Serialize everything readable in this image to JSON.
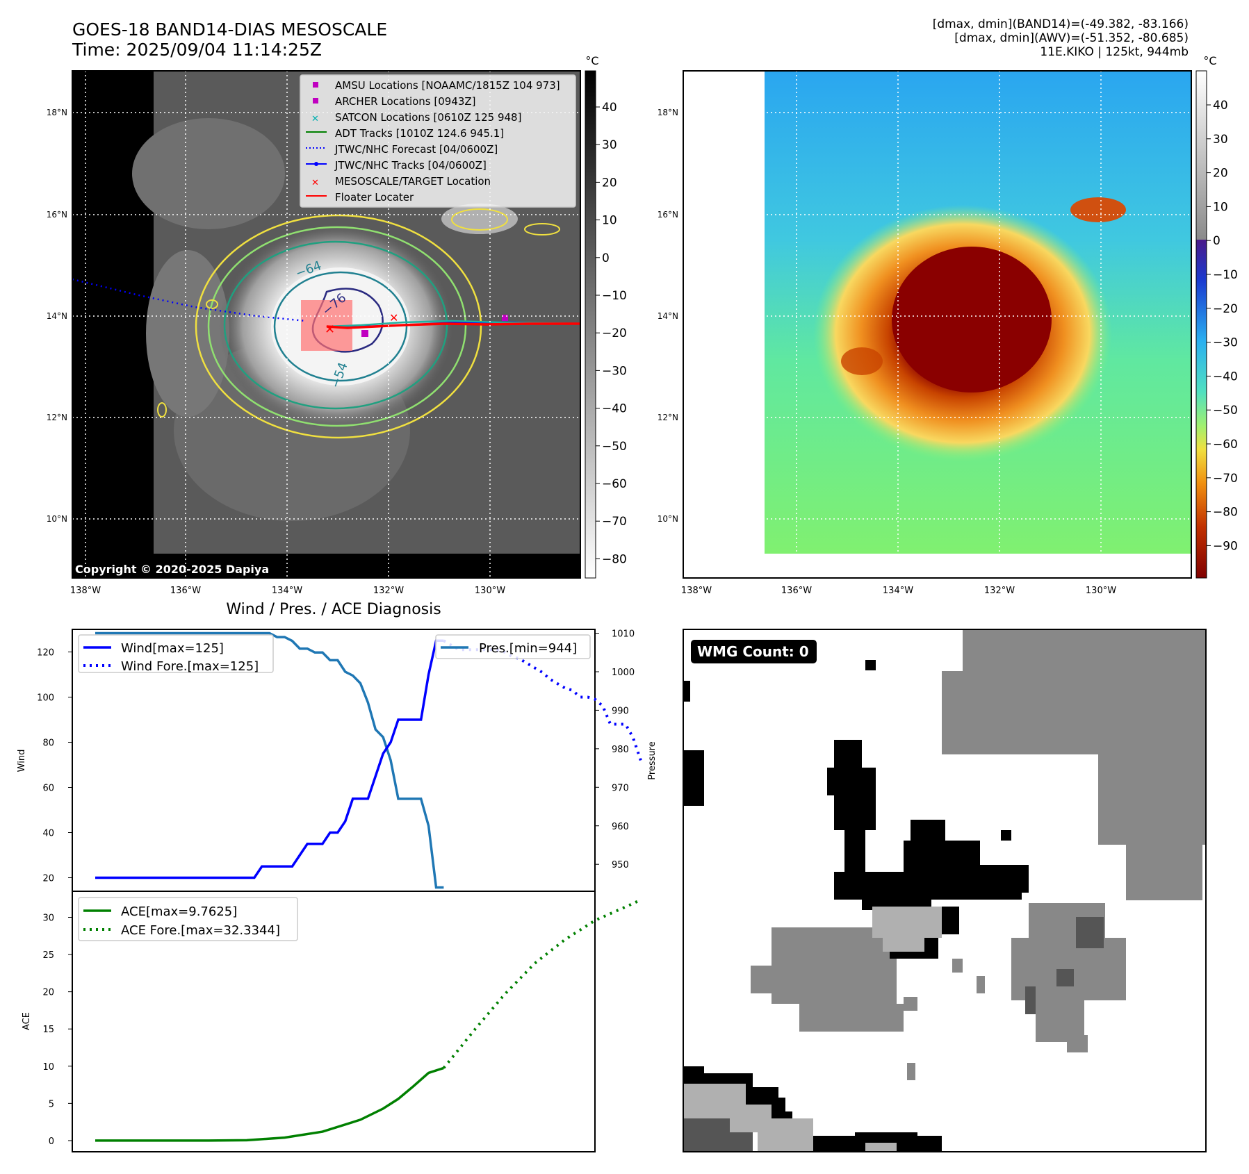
{
  "title_line1": "GOES-18 BAND14-DIAS MESOSCALE",
  "title_line2": "Time: 2025/09/04 11:14:25Z",
  "info_line1": "[dmax, dmin](BAND14)=(-49.382, -83.166)",
  "info_line2": "[dmax, dmin](AWV)=(-51.352, -80.685)",
  "info_line3": "11E.KIKO | 125kt, 944mb",
  "copyright": "Copyright © 2020-2025 Dapiya",
  "colorbar_unit": "°C",
  "lat_ticks": [
    "18°N",
    "16°N",
    "14°N",
    "12°N",
    "10°N"
  ],
  "lon_ticks": [
    "138°W",
    "136°W",
    "134°W",
    "132°W",
    "130°W"
  ],
  "colorbar1_ticks": [
    "40",
    "30",
    "20",
    "10",
    "0",
    "−10",
    "−20",
    "−30",
    "−40",
    "−50",
    "−60",
    "−70",
    "−80"
  ],
  "colorbar2_ticks": [
    "40",
    "30",
    "20",
    "10",
    "0",
    "−10",
    "−20",
    "−30",
    "−40",
    "−50",
    "−60",
    "−70",
    "−80",
    "−90"
  ],
  "contour_labels": [
    "−64",
    "−76",
    "−54"
  ],
  "legend": [
    {
      "label": "AMSU Locations [NOAAMC/1815Z 104 973]",
      "marker": "square",
      "color": "#c000c0"
    },
    {
      "label": "ARCHER Locations [0943Z]",
      "marker": "square",
      "color": "#c000c0"
    },
    {
      "label": "SATCON Locations [0610Z 125 948]",
      "marker": "x",
      "color": "#00b0b0"
    },
    {
      "label": "ADT Tracks [1010Z 124.6 945.1]",
      "marker": "line",
      "color": "#008000"
    },
    {
      "label": "JTWC/NHC Forecast [04/0600Z]",
      "marker": "dotted",
      "color": "#0000ff"
    },
    {
      "label": "JTWC/NHC Tracks [04/0600Z]",
      "marker": "line-dot",
      "color": "#0000ff"
    },
    {
      "label": "MESOSCALE/TARGET Location",
      "marker": "x",
      "color": "#ff0000"
    },
    {
      "label": "Floater Locater",
      "marker": "line",
      "color": "#ff0000"
    }
  ],
  "diag_title": "Wind / Pres. / ACE Diagnosis",
  "wind_legend": [
    "Wind[max=125]",
    "Wind Fore.[max=125]"
  ],
  "pres_legend": "Pres.[min=944]",
  "ace_legend": [
    "ACE[max=9.7625]",
    "ACE Fore.[max=32.3344]"
  ],
  "wind_axis_label": "Wind",
  "pres_axis_label": "Pressure",
  "ace_axis_label": "ACE",
  "wind_ticks": [
    "120",
    "100",
    "80",
    "60",
    "40",
    "20"
  ],
  "pres_ticks": [
    "1010",
    "1000",
    "990",
    "980",
    "970",
    "960",
    "950"
  ],
  "ace_ticks": [
    "30",
    "25",
    "20",
    "15",
    "10",
    "5",
    "0"
  ],
  "wmg_label": "WMG Count: 0",
  "colors": {
    "wind": "#0000ff",
    "pressure": "#1f77b4",
    "ace": "#008000",
    "floater": "#ff0000"
  },
  "chart_data": [
    {
      "type": "line",
      "title": "Wind / Pres. / ACE Diagnosis",
      "ylabel": "Wind",
      "ylim": [
        14,
        130
      ],
      "series": [
        {
          "name": "Wind[max=125]",
          "style": "solid",
          "x": [
            0,
            1,
            2,
            3,
            4,
            5,
            6,
            7,
            8,
            9,
            10,
            11,
            12,
            13,
            14,
            15,
            16,
            17,
            18,
            19,
            20,
            21,
            22,
            23,
            24,
            25,
            26,
            27,
            28,
            29,
            30,
            31,
            32,
            33,
            34,
            35,
            36,
            37,
            38,
            39,
            40,
            41,
            42,
            43,
            44,
            45,
            46
          ],
          "values": [
            20,
            20,
            20,
            20,
            20,
            20,
            20,
            20,
            20,
            20,
            20,
            20,
            20,
            20,
            20,
            20,
            20,
            20,
            20,
            20,
            20,
            20,
            25,
            25,
            25,
            25,
            25,
            30,
            35,
            35,
            35,
            40,
            40,
            45,
            55,
            55,
            55,
            65,
            75,
            80,
            90,
            90,
            90,
            90,
            110,
            125,
            125
          ]
        },
        {
          "name": "Wind Fore.[max=125]",
          "style": "dotted",
          "x": [
            46,
            47,
            48,
            49,
            50,
            51,
            52,
            53,
            54,
            55,
            56,
            57,
            58,
            59,
            60,
            61,
            62,
            63,
            64,
            65,
            66,
            67,
            68,
            69,
            70,
            71,
            72
          ],
          "values": [
            125,
            123,
            121,
            121,
            121,
            121,
            121,
            121,
            120,
            118,
            117,
            115,
            113,
            111,
            108,
            106,
            104,
            103,
            100,
            100,
            99,
            96,
            88,
            88,
            88,
            82,
            72
          ]
        }
      ]
    },
    {
      "type": "line",
      "ylabel": "Pressure",
      "ylim": [
        943,
        1011
      ],
      "series": [
        {
          "name": "Pres.[min=944]",
          "style": "solid",
          "x": [
            0,
            1,
            2,
            3,
            4,
            5,
            6,
            7,
            8,
            9,
            10,
            11,
            12,
            13,
            14,
            15,
            16,
            17,
            18,
            19,
            20,
            21,
            22,
            23,
            24,
            25,
            26,
            27,
            28,
            29,
            30,
            31,
            32,
            33,
            34,
            35,
            36,
            37,
            38,
            39,
            40,
            41,
            42,
            43,
            44,
            45,
            46
          ],
          "values": [
            1010,
            1010,
            1010,
            1010,
            1010,
            1010,
            1010,
            1010,
            1010,
            1010,
            1010,
            1010,
            1010,
            1010,
            1010,
            1010,
            1010,
            1010,
            1010,
            1010,
            1010,
            1010,
            1010,
            1010,
            1009,
            1009,
            1008,
            1006,
            1006,
            1005,
            1005,
            1003,
            1003,
            1000,
            999,
            997,
            992,
            985,
            983,
            977,
            967,
            967,
            967,
            967,
            960,
            944,
            944
          ]
        }
      ]
    },
    {
      "type": "line",
      "ylabel": "ACE",
      "ylim": [
        -1.5,
        33.5
      ],
      "series": [
        {
          "name": "ACE[max=9.7625]",
          "style": "solid",
          "x": [
            0,
            5,
            10,
            15,
            20,
            25,
            30,
            35,
            38,
            40,
            42,
            44,
            46
          ],
          "values": [
            0,
            0,
            0,
            0,
            0.05,
            0.4,
            1.2,
            2.8,
            4.3,
            5.6,
            7.3,
            9.1,
            9.76
          ]
        },
        {
          "name": "ACE Fore.[max=32.3344]",
          "style": "dotted",
          "x": [
            46,
            50,
            54,
            58,
            62,
            66,
            70,
            72
          ],
          "values": [
            9.76,
            14.8,
            19.6,
            23.8,
            27.0,
            29.6,
            31.4,
            32.33
          ]
        }
      ]
    }
  ]
}
